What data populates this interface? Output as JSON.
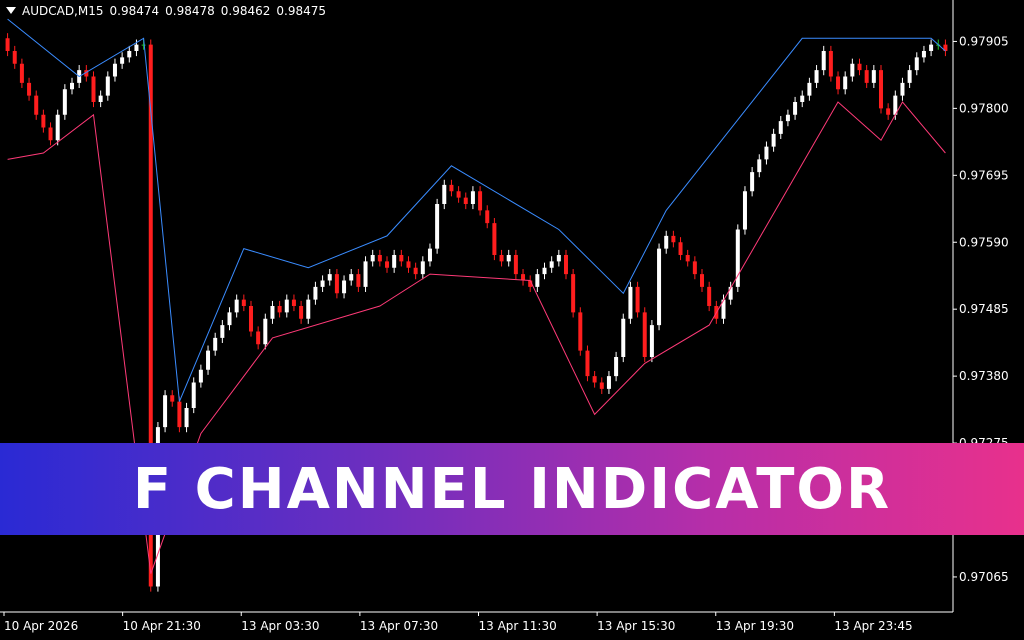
{
  "header": {
    "symbol": "AUDCAD,M15",
    "open": "0.98474",
    "high": "0.98478",
    "low": "0.98462",
    "close": "0.98475"
  },
  "banner": {
    "title": "F CHANNEL INDICATOR"
  },
  "colors": {
    "background": "#000000",
    "bull_candle": "#ffffff",
    "bear_candle": "#ff1e1e",
    "doji_candle": "#22c422",
    "upper_channel": "#3a8cff",
    "lower_channel": "#ff3a78",
    "banner_left": "#2a2ad4",
    "banner_right": "#e8308c"
  },
  "chart_data": {
    "type": "candlestick",
    "title": "",
    "xlabel": "",
    "ylabel": "",
    "ylim": [
      0.9701,
      0.9797
    ],
    "y_ticks": [
      "0.97905",
      "0.97800",
      "0.97695",
      "0.97590",
      "0.97485",
      "0.97380",
      "0.97275",
      "0.97065"
    ],
    "x_ticks": [
      "10 Apr 2026",
      "10 Apr 21:30",
      "13 Apr 03:30",
      "13 Apr 07:30",
      "13 Apr 11:30",
      "13 Apr 15:30",
      "13 Apr 19:30",
      "13 Apr 23:45"
    ],
    "upper_channel": [
      [
        0,
        0.9794
      ],
      [
        10,
        0.9785
      ],
      [
        19,
        0.9791
      ],
      [
        24,
        0.9734
      ],
      [
        33,
        0.9758
      ],
      [
        42,
        0.9755
      ],
      [
        53,
        0.976
      ],
      [
        62,
        0.9771
      ],
      [
        77,
        0.9761
      ],
      [
        86,
        0.9751
      ],
      [
        92,
        0.9764
      ],
      [
        111,
        0.9791
      ],
      [
        129,
        0.9791
      ],
      [
        131,
        0.9789
      ]
    ],
    "lower_channel": [
      [
        0,
        0.9772
      ],
      [
        5,
        0.9773
      ],
      [
        12,
        0.9779
      ],
      [
        20,
        0.9707
      ],
      [
        27,
        0.9729
      ],
      [
        37,
        0.9744
      ],
      [
        52,
        0.9749
      ],
      [
        59,
        0.9754
      ],
      [
        73,
        0.9753
      ],
      [
        82,
        0.9732
      ],
      [
        89,
        0.974
      ],
      [
        98,
        0.9746
      ],
      [
        116,
        0.9781
      ],
      [
        122,
        0.9775
      ],
      [
        125,
        0.9781
      ],
      [
        131,
        0.9773
      ]
    ],
    "candles_close": [
      0.9789,
      0.9787,
      0.9784,
      0.9782,
      0.9779,
      0.9777,
      0.9775,
      0.9779,
      0.9783,
      0.9784,
      0.9786,
      0.9785,
      0.9781,
      0.9782,
      0.9785,
      0.9787,
      0.9788,
      0.9789,
      0.979,
      0.979,
      0.9705,
      0.973,
      0.9735,
      0.9734,
      0.973,
      0.9733,
      0.9737,
      0.9739,
      0.9742,
      0.9744,
      0.9746,
      0.9748,
      0.975,
      0.9749,
      0.9745,
      0.9743,
      0.9747,
      0.9749,
      0.9748,
      0.975,
      0.9749,
      0.9747,
      0.975,
      0.9752,
      0.9753,
      0.9754,
      0.9751,
      0.9753,
      0.9754,
      0.9752,
      0.9756,
      0.9757,
      0.9756,
      0.9755,
      0.9757,
      0.9756,
      0.9755,
      0.9754,
      0.9756,
      0.9758,
      0.9765,
      0.9768,
      0.9767,
      0.9766,
      0.9765,
      0.9767,
      0.9764,
      0.9762,
      0.9757,
      0.9756,
      0.9757,
      0.9754,
      0.9753,
      0.9752,
      0.9754,
      0.9755,
      0.9756,
      0.9757,
      0.9754,
      0.9748,
      0.9742,
      0.9738,
      0.9737,
      0.9736,
      0.9738,
      0.9741,
      0.9747,
      0.9752,
      0.9748,
      0.9741,
      0.9746,
      0.9758,
      0.976,
      0.9759,
      0.9757,
      0.9756,
      0.9754,
      0.9752,
      0.9749,
      0.9747,
      0.975,
      0.9752,
      0.9761,
      0.9767,
      0.977,
      0.9772,
      0.9774,
      0.9776,
      0.9778,
      0.9779,
      0.9781,
      0.9782,
      0.9784,
      0.9786,
      0.9789,
      0.9785,
      0.9783,
      0.9785,
      0.9787,
      0.9786,
      0.9784,
      0.9786,
      0.978,
      0.9779,
      0.9782,
      0.9784,
      0.9786,
      0.9788,
      0.9789,
      0.979,
      0.979,
      0.9789
    ]
  }
}
